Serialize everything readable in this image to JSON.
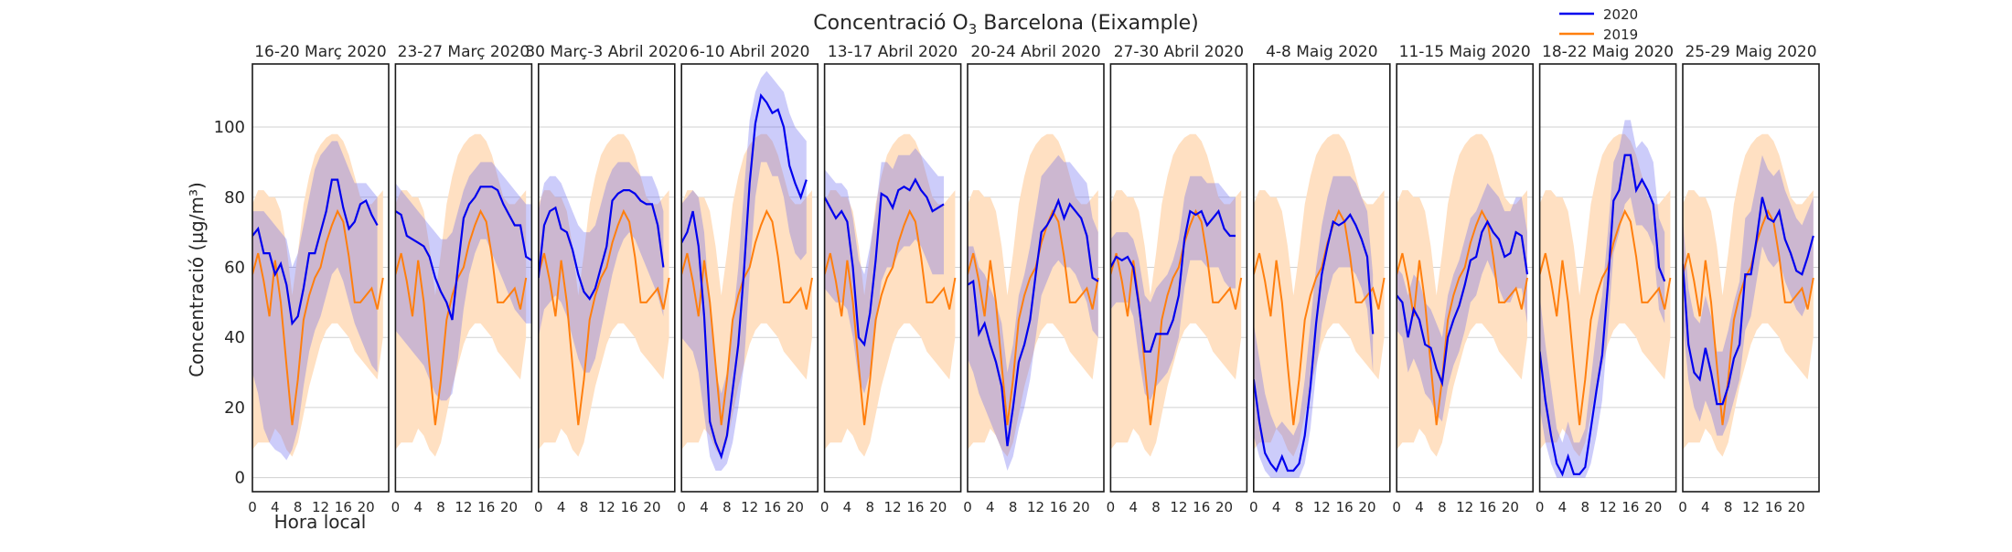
{
  "chart_data": {
    "type": "line",
    "title_prefix": "Concentració O",
    "title_sub": "3",
    "title_suffix": " Barcelona (Eixample)",
    "ylabel": "Concentració (µg/m³)",
    "xlabel": "Hora local",
    "ylim": [
      -4,
      118
    ],
    "xlim": [
      0,
      24
    ],
    "yticks": [
      0,
      20,
      40,
      60,
      80,
      100
    ],
    "xticks": [
      0,
      4,
      8,
      12,
      16,
      20
    ],
    "grid": "horizontal",
    "legend_position": "top-right",
    "legend": [
      {
        "name": "2020",
        "color": "#0000ee"
      },
      {
        "name": "2019",
        "color": "#ff7f0e"
      }
    ],
    "band_colors": {
      "2020": "#c4c4f8",
      "2019": "#ffe0c2",
      "overlap": "#c8b8d8"
    },
    "hours": [
      0,
      1,
      2,
      3,
      4,
      5,
      6,
      7,
      8,
      9,
      10,
      11,
      12,
      13,
      14,
      15,
      16,
      17,
      18,
      19,
      20,
      21,
      22,
      23
    ],
    "series_2019_mean": [
      58,
      64,
      56,
      46,
      62,
      50,
      32,
      15,
      28,
      45,
      52,
      57,
      60,
      67,
      72,
      76,
      73,
      63,
      50,
      50,
      52,
      54,
      48,
      57
    ],
    "series_2019_low": [
      8,
      10,
      10,
      10,
      14,
      12,
      8,
      6,
      10,
      18,
      26,
      32,
      38,
      42,
      44,
      44,
      42,
      40,
      36,
      34,
      32,
      30,
      28,
      40
    ],
    "series_2019_high": [
      78,
      82,
      82,
      80,
      80,
      76,
      66,
      52,
      64,
      78,
      86,
      92,
      95,
      97,
      98,
      98,
      96,
      92,
      86,
      80,
      78,
      78,
      80,
      82
    ],
    "panels": [
      {
        "title": "16-20 Març 2020",
        "mean_2020": [
          69,
          71,
          64,
          64,
          58,
          61,
          55,
          44,
          46,
          54,
          64,
          64,
          70,
          76,
          85,
          85,
          77,
          71,
          73,
          78,
          79,
          75,
          72
        ],
        "low_2020": [
          30,
          24,
          14,
          10,
          8,
          7,
          5,
          8,
          14,
          26,
          36,
          42,
          46,
          52,
          58,
          60,
          56,
          50,
          44,
          40,
          36,
          32,
          30
        ],
        "high_2020": [
          76,
          76,
          76,
          74,
          72,
          70,
          68,
          60,
          64,
          72,
          80,
          88,
          92,
          94,
          96,
          96,
          92,
          88,
          84,
          84,
          84,
          82,
          80
        ]
      },
      {
        "title": "23-27 Març 2020",
        "mean_2020": [
          76,
          75,
          69,
          68,
          67,
          66,
          63,
          57,
          53,
          50,
          45,
          60,
          74,
          78,
          80,
          83,
          83,
          83,
          82,
          78,
          75,
          72,
          72,
          63,
          62
        ],
        "low_2020": [
          42,
          40,
          38,
          36,
          34,
          32,
          28,
          24,
          22,
          22,
          24,
          34,
          48,
          58,
          64,
          68,
          68,
          64,
          60,
          56,
          52,
          48,
          46,
          44,
          44
        ],
        "high_2020": [
          84,
          82,
          80,
          78,
          76,
          74,
          72,
          70,
          68,
          68,
          70,
          76,
          82,
          86,
          88,
          90,
          90,
          90,
          88,
          86,
          84,
          82,
          80,
          78,
          78
        ]
      },
      {
        "title": "30 Març-3 Abril 2020",
        "mean_2020": [
          57,
          72,
          76,
          77,
          71,
          70,
          65,
          58,
          53,
          51,
          54,
          60,
          66,
          79,
          81,
          82,
          82,
          81,
          79,
          78,
          78,
          72,
          60
        ],
        "low_2020": [
          40,
          48,
          50,
          52,
          50,
          46,
          40,
          34,
          30,
          30,
          34,
          42,
          50,
          58,
          64,
          68,
          70,
          68,
          64,
          60,
          56,
          52,
          46
        ],
        "high_2020": [
          76,
          84,
          86,
          86,
          84,
          80,
          76,
          72,
          70,
          70,
          72,
          78,
          84,
          88,
          90,
          90,
          90,
          88,
          86,
          86,
          86,
          82,
          76
        ]
      },
      {
        "title": "6-10 Abril 2020",
        "mean_2020": [
          67,
          70,
          76,
          66,
          46,
          16,
          10,
          6,
          12,
          25,
          38,
          59,
          84,
          101,
          109,
          107,
          104,
          105,
          100,
          89,
          84,
          80,
          85
        ],
        "low_2020": [
          40,
          38,
          36,
          30,
          18,
          6,
          2,
          2,
          4,
          10,
          20,
          32,
          58,
          80,
          90,
          90,
          86,
          86,
          80,
          70,
          64,
          62,
          64
        ],
        "high_2020": [
          78,
          80,
          82,
          80,
          70,
          48,
          30,
          24,
          30,
          44,
          60,
          82,
          102,
          110,
          114,
          116,
          114,
          112,
          110,
          104,
          100,
          98,
          96
        ]
      },
      {
        "title": "13-17 Abril 2020",
        "mean_2020": [
          80,
          77,
          74,
          76,
          73,
          60,
          40,
          38,
          47,
          62,
          81,
          80,
          77,
          82,
          83,
          82,
          85,
          82,
          80,
          76,
          77,
          78
        ],
        "low_2020": [
          54,
          52,
          50,
          50,
          48,
          40,
          28,
          24,
          30,
          42,
          56,
          60,
          60,
          64,
          66,
          66,
          68,
          66,
          62,
          58,
          58,
          58
        ],
        "high_2020": [
          88,
          86,
          84,
          84,
          82,
          74,
          62,
          58,
          66,
          76,
          90,
          90,
          88,
          92,
          92,
          92,
          94,
          92,
          90,
          88,
          86,
          86
        ]
      },
      {
        "title": "20-24 Abril 2020",
        "mean_2020": [
          55,
          56,
          41,
          44,
          38,
          33,
          26,
          9,
          20,
          33,
          38,
          45,
          58,
          70,
          72,
          75,
          79,
          74,
          78,
          76,
          74,
          69,
          57,
          56
        ],
        "low_2020": [
          34,
          30,
          24,
          20,
          16,
          12,
          8,
          2,
          6,
          14,
          20,
          28,
          40,
          52,
          56,
          60,
          62,
          60,
          60,
          58,
          54,
          50,
          42,
          40
        ],
        "high_2020": [
          66,
          66,
          60,
          58,
          54,
          50,
          44,
          30,
          38,
          52,
          58,
          66,
          76,
          86,
          88,
          90,
          92,
          90,
          90,
          88,
          86,
          84,
          74,
          70
        ]
      },
      {
        "title": "27-30 Abril 2020",
        "mean_2020": [
          60,
          63,
          62,
          63,
          60,
          49,
          36,
          36,
          41,
          41,
          41,
          45,
          52,
          68,
          76,
          75,
          76,
          72,
          74,
          76,
          71,
          69,
          69
        ],
        "low_2020": [
          48,
          50,
          50,
          50,
          46,
          34,
          24,
          22,
          26,
          28,
          30,
          34,
          40,
          54,
          62,
          62,
          62,
          60,
          60,
          60,
          56,
          54,
          54
        ],
        "high_2020": [
          68,
          70,
          70,
          70,
          68,
          62,
          52,
          50,
          54,
          56,
          58,
          62,
          68,
          80,
          86,
          86,
          86,
          84,
          84,
          84,
          82,
          80,
          80
        ]
      },
      {
        "title": "4-8 Maig 2020",
        "mean_2020": [
          28,
          16,
          7,
          4,
          2,
          6,
          2,
          2,
          4,
          12,
          26,
          44,
          58,
          66,
          73,
          72,
          73,
          75,
          72,
          68,
          63,
          41
        ],
        "low_2020": [
          12,
          6,
          2,
          0,
          0,
          0,
          0,
          0,
          0,
          4,
          14,
          30,
          44,
          52,
          58,
          60,
          60,
          60,
          58,
          54,
          48,
          30
        ],
        "high_2020": [
          44,
          34,
          24,
          18,
          14,
          16,
          14,
          12,
          16,
          28,
          44,
          60,
          72,
          80,
          86,
          86,
          86,
          86,
          84,
          80,
          76,
          58
        ]
      },
      {
        "title": "11-15 Maig 2020",
        "mean_2020": [
          52,
          50,
          40,
          48,
          45,
          38,
          37,
          31,
          27,
          40,
          45,
          49,
          55,
          62,
          63,
          70,
          73,
          70,
          68,
          63,
          64,
          70,
          69,
          58
        ],
        "low_2020": [
          42,
          40,
          30,
          34,
          30,
          24,
          22,
          18,
          16,
          26,
          32,
          36,
          42,
          50,
          52,
          58,
          62,
          58,
          54,
          50,
          50,
          54,
          54,
          44
        ],
        "high_2020": [
          60,
          58,
          52,
          58,
          56,
          50,
          48,
          44,
          40,
          52,
          58,
          62,
          68,
          74,
          76,
          80,
          84,
          82,
          80,
          76,
          76,
          80,
          80,
          70
        ]
      },
      {
        "title": "18-22 Maig 2020",
        "mean_2020": [
          36,
          22,
          12,
          4,
          1,
          6,
          1,
          1,
          3,
          14,
          25,
          35,
          55,
          79,
          82,
          92,
          92,
          82,
          85,
          82,
          78,
          60,
          56
        ],
        "low_2020": [
          20,
          10,
          4,
          0,
          0,
          0,
          0,
          0,
          0,
          4,
          12,
          22,
          42,
          64,
          70,
          78,
          80,
          72,
          72,
          70,
          66,
          48,
          44
        ],
        "high_2020": [
          52,
          38,
          26,
          14,
          10,
          16,
          10,
          10,
          14,
          28,
          42,
          52,
          70,
          90,
          94,
          102,
          102,
          94,
          96,
          94,
          90,
          74,
          70
        ]
      },
      {
        "title": "25-29 Maig 2020",
        "mean_2020": [
          61,
          38,
          30,
          28,
          37,
          30,
          21,
          21,
          26,
          34,
          38,
          58,
          58,
          68,
          80,
          74,
          73,
          76,
          68,
          64,
          59,
          58,
          63,
          69
        ],
        "low_2020": [
          44,
          28,
          20,
          16,
          22,
          18,
          12,
          12,
          16,
          22,
          28,
          42,
          46,
          56,
          66,
          62,
          60,
          62,
          56,
          52,
          48,
          46,
          50,
          56
        ],
        "high_2020": [
          74,
          54,
          46,
          44,
          52,
          46,
          36,
          36,
          42,
          50,
          56,
          74,
          76,
          84,
          92,
          88,
          86,
          88,
          82,
          78,
          74,
          72,
          76,
          80
        ]
      }
    ]
  }
}
